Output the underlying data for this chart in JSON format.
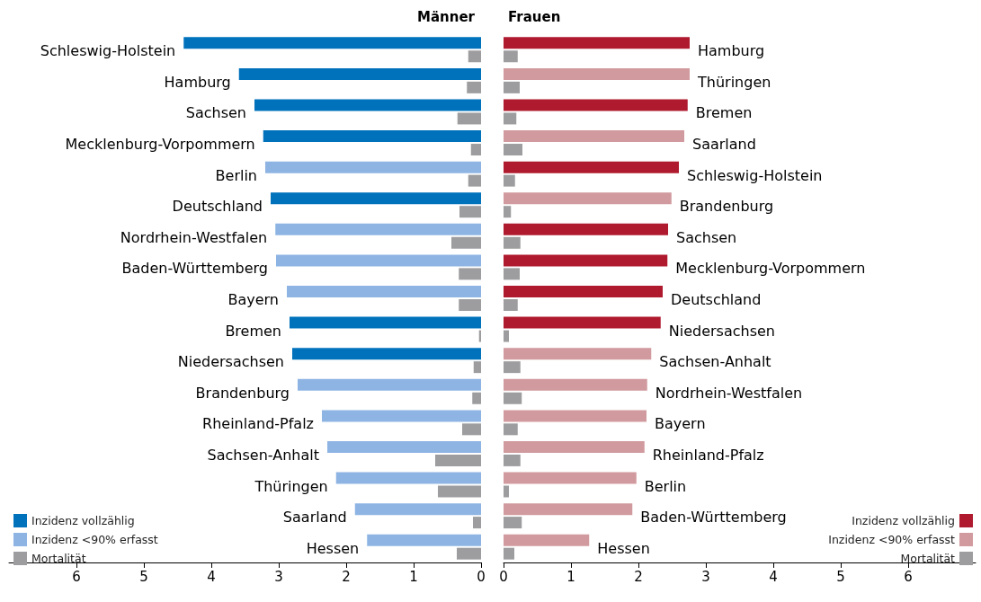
{
  "chart_data": [
    {
      "type": "bar",
      "orientation": "horizontal",
      "title": "Männer",
      "categories": [
        "Schleswig-Holstein",
        "Hamburg",
        "Sachsen",
        "Mecklenburg-Vorpommern",
        "Berlin",
        "Deutschland",
        "Nordrhein-Westfalen",
        "Baden-Württemberg",
        "Bayern",
        "Bremen",
        "Niedersachsen",
        "Brandenburg",
        "Rheinland-Pfalz",
        "Sachsen-Anhalt",
        "Thüringen",
        "Saarland",
        "Hessen"
      ],
      "series": [
        {
          "name": "Inzidenz vollzählig",
          "color": "#0072bc",
          "values": [
            4.41,
            3.59,
            3.36,
            3.23,
            null,
            3.12,
            null,
            null,
            null,
            2.84,
            2.8,
            null,
            null,
            null,
            null,
            null,
            null
          ]
        },
        {
          "name": "Inzidenz <90% erfasst",
          "color": "#8eb4e3",
          "values": [
            null,
            null,
            null,
            null,
            3.2,
            null,
            3.05,
            3.04,
            2.88,
            null,
            null,
            2.72,
            2.36,
            2.28,
            2.15,
            1.87,
            1.69
          ]
        },
        {
          "name": "Mortalität",
          "color": "#9d9d9f",
          "values": [
            0.19,
            0.21,
            0.35,
            0.15,
            0.19,
            0.32,
            0.44,
            0.33,
            0.33,
            0.03,
            0.11,
            0.13,
            0.28,
            0.68,
            0.64,
            0.12,
            0.36
          ]
        }
      ],
      "xlim": [
        7,
        0
      ],
      "xticks": [
        6,
        5,
        4,
        3,
        2,
        1,
        0
      ],
      "legend": "bottom left",
      "grid": false
    },
    {
      "type": "bar",
      "orientation": "horizontal",
      "title": "Frauen",
      "categories": [
        "Hamburg",
        "Thüringen",
        "Bremen",
        "Saarland",
        "Schleswig-Holstein",
        "Brandenburg",
        "Sachsen",
        "Mecklenburg-Vorpommern",
        "Deutschland",
        "Niedersachsen",
        "Sachsen-Anhalt",
        "Nordrhein-Westfalen",
        "Bayern",
        "Rheinland-Pfalz",
        "Berlin",
        "Baden-Württemberg",
        "Hessen"
      ],
      "series": [
        {
          "name": "Inzidenz vollzählig",
          "color": "#af1a2e",
          "values": [
            2.76,
            null,
            2.73,
            null,
            2.6,
            null,
            2.44,
            2.43,
            2.36,
            2.33,
            null,
            null,
            null,
            null,
            null,
            null,
            null
          ]
        },
        {
          "name": "Inzidenz <90% erfasst",
          "color": "#d19a9e",
          "values": [
            null,
            2.76,
            null,
            2.68,
            null,
            2.49,
            null,
            null,
            null,
            null,
            2.19,
            2.13,
            2.12,
            2.09,
            1.97,
            1.91,
            1.27
          ]
        },
        {
          "name": "Mortalität",
          "color": "#9d9d9f",
          "values": [
            0.21,
            0.24,
            0.19,
            0.28,
            0.17,
            0.11,
            0.25,
            0.24,
            0.21,
            0.08,
            0.25,
            0.27,
            0.21,
            0.25,
            0.08,
            0.27,
            0.16
          ]
        }
      ],
      "xlim": [
        0,
        7
      ],
      "xticks": [
        0,
        1,
        2,
        3,
        4,
        5,
        6
      ],
      "legend": "bottom right",
      "grid": false
    }
  ]
}
